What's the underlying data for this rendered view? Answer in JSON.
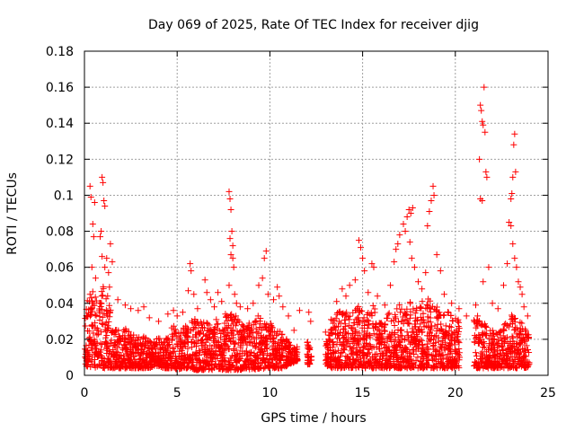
{
  "chart_data": {
    "type": "scatter",
    "title": "Day 069 of 2025, Rate Of TEC Index for receiver djig",
    "xlabel": "GPS time / hours",
    "ylabel": "ROTI / TECUs",
    "xlim": [
      0,
      25
    ],
    "ylim": [
      0,
      0.18
    ],
    "xticks": [
      0,
      5,
      10,
      15,
      20,
      25
    ],
    "xtick_labels": [
      "0",
      "5",
      "10",
      "15",
      "20",
      "25"
    ],
    "yticks": [
      0,
      0.02,
      0.04,
      0.06,
      0.08,
      0.1,
      0.12,
      0.14,
      0.16,
      0.18
    ],
    "ytick_labels": [
      "0",
      "0.02",
      "0.04",
      "0.06",
      "0.08",
      "0.1",
      "0.12",
      "0.14",
      "0.16",
      "0.18"
    ],
    "grid": true,
    "marker": "+",
    "color": "#ff0000",
    "series": [
      {
        "name": "ROTI",
        "points": [
          [
            0.3,
            0.105
          ],
          [
            0.35,
            0.099
          ],
          [
            0.45,
            0.084
          ],
          [
            0.5,
            0.077
          ],
          [
            0.55,
            0.096
          ],
          [
            0.4,
            0.06
          ],
          [
            0.6,
            0.054
          ],
          [
            0.3,
            0.045
          ],
          [
            0.45,
            0.04
          ],
          [
            0.95,
            0.11
          ],
          [
            1.0,
            0.107
          ],
          [
            1.05,
            0.097
          ],
          [
            1.1,
            0.094
          ],
          [
            0.9,
            0.08
          ],
          [
            0.85,
            0.077
          ],
          [
            0.95,
            0.066
          ],
          [
            1.1,
            0.06
          ],
          [
            1.2,
            0.065
          ],
          [
            1.3,
            0.057
          ],
          [
            1.4,
            0.073
          ],
          [
            1.5,
            0.063
          ],
          [
            1.35,
            0.049
          ],
          [
            1.25,
            0.044
          ],
          [
            1.8,
            0.042
          ],
          [
            2.2,
            0.039
          ],
          [
            2.5,
            0.037
          ],
          [
            2.9,
            0.036
          ],
          [
            3.2,
            0.038
          ],
          [
            3.5,
            0.032
          ],
          [
            4.0,
            0.03
          ],
          [
            4.5,
            0.034
          ],
          [
            4.8,
            0.036
          ],
          [
            5.0,
            0.033
          ],
          [
            5.3,
            0.035
          ],
          [
            5.6,
            0.047
          ],
          [
            5.7,
            0.062
          ],
          [
            5.75,
            0.058
          ],
          [
            5.9,
            0.045
          ],
          [
            6.1,
            0.037
          ],
          [
            6.5,
            0.053
          ],
          [
            6.6,
            0.046
          ],
          [
            6.8,
            0.042
          ],
          [
            7.0,
            0.038
          ],
          [
            7.2,
            0.046
          ],
          [
            7.4,
            0.041
          ],
          [
            7.6,
            0.034
          ],
          [
            7.8,
            0.102
          ],
          [
            7.85,
            0.098
          ],
          [
            7.9,
            0.092
          ],
          [
            7.95,
            0.08
          ],
          [
            7.85,
            0.076
          ],
          [
            8.0,
            0.072
          ],
          [
            7.9,
            0.067
          ],
          [
            8.0,
            0.065
          ],
          [
            8.05,
            0.06
          ],
          [
            7.8,
            0.05
          ],
          [
            8.1,
            0.045
          ],
          [
            8.2,
            0.04
          ],
          [
            8.4,
            0.038
          ],
          [
            8.8,
            0.037
          ],
          [
            9.1,
            0.04
          ],
          [
            9.4,
            0.05
          ],
          [
            9.6,
            0.054
          ],
          [
            9.7,
            0.065
          ],
          [
            9.8,
            0.069
          ],
          [
            9.9,
            0.045
          ],
          [
            10.2,
            0.042
          ],
          [
            10.4,
            0.049
          ],
          [
            10.5,
            0.044
          ],
          [
            10.7,
            0.038
          ],
          [
            11.0,
            0.033
          ],
          [
            11.3,
            0.025
          ],
          [
            11.6,
            0.036
          ],
          [
            12.1,
            0.035
          ],
          [
            12.2,
            0.03
          ],
          [
            13.0,
            0.024
          ],
          [
            13.3,
            0.031
          ],
          [
            13.6,
            0.041
          ],
          [
            13.9,
            0.048
          ],
          [
            14.1,
            0.044
          ],
          [
            14.3,
            0.05
          ],
          [
            14.6,
            0.053
          ],
          [
            14.8,
            0.075
          ],
          [
            14.9,
            0.071
          ],
          [
            15.0,
            0.065
          ],
          [
            15.1,
            0.058
          ],
          [
            15.3,
            0.046
          ],
          [
            15.5,
            0.062
          ],
          [
            15.6,
            0.06
          ],
          [
            15.8,
            0.044
          ],
          [
            16.2,
            0.039
          ],
          [
            16.5,
            0.05
          ],
          [
            16.7,
            0.063
          ],
          [
            16.8,
            0.07
          ],
          [
            16.9,
            0.073
          ],
          [
            17.0,
            0.078
          ],
          [
            17.2,
            0.084
          ],
          [
            17.3,
            0.08
          ],
          [
            17.4,
            0.088
          ],
          [
            17.5,
            0.092
          ],
          [
            17.6,
            0.09
          ],
          [
            17.7,
            0.093
          ],
          [
            17.55,
            0.074
          ],
          [
            17.65,
            0.065
          ],
          [
            17.8,
            0.06
          ],
          [
            18.0,
            0.052
          ],
          [
            18.2,
            0.048
          ],
          [
            18.4,
            0.057
          ],
          [
            18.5,
            0.083
          ],
          [
            18.6,
            0.091
          ],
          [
            18.7,
            0.097
          ],
          [
            18.8,
            0.105
          ],
          [
            18.85,
            0.1
          ],
          [
            19.0,
            0.067
          ],
          [
            19.2,
            0.058
          ],
          [
            19.4,
            0.045
          ],
          [
            19.8,
            0.04
          ],
          [
            20.2,
            0.037
          ],
          [
            20.6,
            0.033
          ],
          [
            21.1,
            0.039
          ],
          [
            21.2,
            0.033
          ],
          [
            21.3,
            0.12
          ],
          [
            21.35,
            0.15
          ],
          [
            21.4,
            0.147
          ],
          [
            21.45,
            0.141
          ],
          [
            21.5,
            0.139
          ],
          [
            21.55,
            0.16
          ],
          [
            21.6,
            0.135
          ],
          [
            21.65,
            0.113
          ],
          [
            21.7,
            0.11
          ],
          [
            21.35,
            0.098
          ],
          [
            21.45,
            0.097
          ],
          [
            21.8,
            0.06
          ],
          [
            21.5,
            0.052
          ],
          [
            22.0,
            0.04
          ],
          [
            22.3,
            0.037
          ],
          [
            22.6,
            0.05
          ],
          [
            22.8,
            0.062
          ],
          [
            22.9,
            0.085
          ],
          [
            23.0,
            0.098
          ],
          [
            23.05,
            0.101
          ],
          [
            23.1,
            0.11
          ],
          [
            23.15,
            0.128
          ],
          [
            23.2,
            0.134
          ],
          [
            23.25,
            0.113
          ],
          [
            23.0,
            0.083
          ],
          [
            23.1,
            0.073
          ],
          [
            23.2,
            0.065
          ],
          [
            23.3,
            0.06
          ],
          [
            23.4,
            0.052
          ],
          [
            23.5,
            0.049
          ],
          [
            23.6,
            0.045
          ],
          [
            23.7,
            0.038
          ],
          [
            23.9,
            0.033
          ]
        ],
        "band": [
          [
            0.0,
            0.005,
            0.036
          ],
          [
            0.25,
            0.005,
            0.045
          ],
          [
            0.5,
            0.004,
            0.047
          ],
          [
            0.75,
            0.005,
            0.04
          ],
          [
            1.0,
            0.004,
            0.05
          ],
          [
            1.25,
            0.004,
            0.046
          ],
          [
            1.5,
            0.004,
            0.032
          ],
          [
            1.75,
            0.004,
            0.026
          ],
          [
            2.0,
            0.004,
            0.025
          ],
          [
            2.25,
            0.004,
            0.026
          ],
          [
            2.5,
            0.004,
            0.025
          ],
          [
            2.75,
            0.004,
            0.024
          ],
          [
            3.0,
            0.004,
            0.025
          ],
          [
            3.25,
            0.004,
            0.022
          ],
          [
            3.5,
            0.004,
            0.02
          ],
          [
            3.75,
            0.005,
            0.02
          ],
          [
            4.0,
            0.005,
            0.022
          ],
          [
            4.25,
            0.004,
            0.02
          ],
          [
            4.5,
            0.004,
            0.022
          ],
          [
            4.75,
            0.004,
            0.028
          ],
          [
            5.0,
            0.003,
            0.026
          ],
          [
            5.25,
            0.004,
            0.028
          ],
          [
            5.5,
            0.004,
            0.032
          ],
          [
            5.75,
            0.004,
            0.03
          ],
          [
            6.0,
            0.003,
            0.032
          ],
          [
            6.25,
            0.003,
            0.03
          ],
          [
            6.5,
            0.003,
            0.033
          ],
          [
            6.75,
            0.003,
            0.03
          ],
          [
            7.0,
            0.003,
            0.032
          ],
          [
            7.25,
            0.003,
            0.03
          ],
          [
            7.5,
            0.003,
            0.031
          ],
          [
            7.75,
            0.003,
            0.034
          ],
          [
            8.0,
            0.003,
            0.035
          ],
          [
            8.25,
            0.003,
            0.032
          ],
          [
            8.5,
            0.003,
            0.03
          ],
          [
            8.75,
            0.004,
            0.026
          ],
          [
            9.0,
            0.003,
            0.032
          ],
          [
            9.25,
            0.003,
            0.035
          ],
          [
            9.5,
            0.003,
            0.033
          ],
          [
            9.75,
            0.004,
            0.03
          ],
          [
            10.0,
            0.004,
            0.03
          ],
          [
            10.25,
            0.004,
            0.026
          ],
          [
            10.5,
            0.004,
            0.025
          ],
          [
            10.75,
            0.004,
            0.022
          ],
          [
            11.0,
            0.006,
            0.02
          ],
          [
            11.25,
            0.007,
            0.015
          ],
          [
            11.5,
            0.008,
            0.016
          ],
          [
            12.0,
            0.005,
            0.02
          ],
          [
            12.25,
            0.007,
            0.016
          ],
          [
            13.0,
            0.006,
            0.018
          ],
          [
            13.25,
            0.004,
            0.026
          ],
          [
            13.5,
            0.004,
            0.035
          ],
          [
            13.75,
            0.004,
            0.037
          ],
          [
            14.0,
            0.004,
            0.034
          ],
          [
            14.25,
            0.004,
            0.036
          ],
          [
            14.5,
            0.004,
            0.035
          ],
          [
            14.75,
            0.004,
            0.04
          ],
          [
            15.0,
            0.004,
            0.038
          ],
          [
            15.25,
            0.004,
            0.037
          ],
          [
            15.5,
            0.004,
            0.04
          ],
          [
            15.75,
            0.004,
            0.036
          ],
          [
            16.0,
            0.004,
            0.03
          ],
          [
            16.25,
            0.004,
            0.033
          ],
          [
            16.5,
            0.004,
            0.035
          ],
          [
            16.75,
            0.004,
            0.037
          ],
          [
            17.0,
            0.004,
            0.04
          ],
          [
            17.25,
            0.004,
            0.04
          ],
          [
            17.5,
            0.004,
            0.042
          ],
          [
            17.75,
            0.004,
            0.04
          ],
          [
            18.0,
            0.004,
            0.04
          ],
          [
            18.25,
            0.004,
            0.042
          ],
          [
            18.5,
            0.004,
            0.043
          ],
          [
            18.75,
            0.004,
            0.04
          ],
          [
            19.0,
            0.004,
            0.038
          ],
          [
            19.25,
            0.004,
            0.036
          ],
          [
            19.5,
            0.004,
            0.036
          ],
          [
            19.75,
            0.004,
            0.034
          ],
          [
            20.0,
            0.004,
            0.033
          ],
          [
            20.25,
            0.004,
            0.03
          ],
          [
            21.0,
            0.004,
            0.033
          ],
          [
            21.25,
            0.004,
            0.035
          ],
          [
            21.5,
            0.004,
            0.03
          ],
          [
            21.75,
            0.004,
            0.026
          ],
          [
            22.0,
            0.004,
            0.025
          ],
          [
            22.25,
            0.004,
            0.024
          ],
          [
            22.5,
            0.004,
            0.026
          ],
          [
            22.75,
            0.004,
            0.03
          ],
          [
            23.0,
            0.004,
            0.035
          ],
          [
            23.25,
            0.004,
            0.032
          ],
          [
            23.5,
            0.004,
            0.03
          ],
          [
            23.75,
            0.004,
            0.028
          ],
          [
            24.0,
            0.005,
            0.022
          ]
        ]
      }
    ]
  }
}
